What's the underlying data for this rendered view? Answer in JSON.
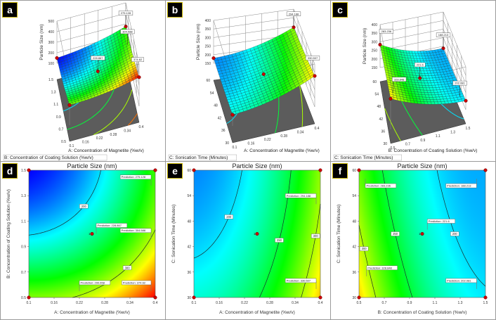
{
  "colors": {
    "low": "#0000ff",
    "mid": "#00ff00",
    "high": "#ff0000",
    "design_point": "#cc0000",
    "floor": "#5c5c5c"
  },
  "center_point_label": "1",
  "chart_data": [
    {
      "panel": "a",
      "type": "surface",
      "zlabel": "Particle Size (nm)",
      "xlabel": "A: Concentration of Magnetite (%w/v)",
      "ylabel": "B: Concentration of Coating Solution (%w/v)",
      "xlim": [
        0.1,
        0.4
      ],
      "ylim": [
        0.5,
        1.5
      ],
      "zlim": [
        100,
        500
      ],
      "xticks": [
        "0.1",
        "0.16",
        "0.22",
        "0.28",
        "0.34",
        "0.4"
      ],
      "yticks": [
        "0.5",
        "0.7",
        "0.9",
        "1.1",
        "1.3",
        "1.5"
      ],
      "zticks": [
        "100",
        "200",
        "300",
        "400",
        "500"
      ],
      "design_points": [
        [
          0.1,
          0.5
        ],
        [
          0.4,
          0.5
        ],
        [
          0.1,
          1.5
        ],
        [
          0.4,
          1.5
        ],
        [
          0.25,
          1.0
        ]
      ],
      "predictions": [
        {
          "label": "275.128",
          "at": [
            0.4,
            1.5
          ]
        },
        {
          "label": "304.588",
          "at": [
            0.39,
            1.2
          ]
        },
        {
          "label": "228.867",
          "at": [
            0.25,
            1.0
          ]
        },
        {
          "label": "374.62",
          "at": [
            0.4,
            0.6
          ]
        }
      ]
    },
    {
      "panel": "b",
      "type": "surface",
      "zlabel": "Particle Size (nm)",
      "xlabel": "A: Concentration of Magnetite (%w/v)",
      "ylabel": "C: Sonication Time (Minutes)",
      "xlim": [
        0.1,
        0.4
      ],
      "ylim": [
        30,
        60
      ],
      "zlim": [
        150,
        400
      ],
      "xticks": [
        "0.1",
        "0.16",
        "0.22",
        "0.28",
        "0.34",
        "0.4"
      ],
      "yticks": [
        "30",
        "36",
        "42",
        "48",
        "54",
        "60"
      ],
      "zticks": [
        "150",
        "200",
        "250",
        "300",
        "350",
        "400"
      ],
      "design_points": [
        [
          0.1,
          30
        ],
        [
          0.4,
          30
        ],
        [
          0.1,
          60
        ],
        [
          0.4,
          60
        ],
        [
          0.25,
          45
        ]
      ],
      "predictions": [
        {
          "label": "294.188",
          "at": [
            0.4,
            60
          ]
        },
        {
          "label": "330.507",
          "at": [
            0.4,
            33
          ]
        }
      ]
    },
    {
      "panel": "c",
      "type": "surface",
      "zlabel": "Particle Size (nm)",
      "xlabel": "B: Concentration of Coating Solution (%w/v)",
      "ylabel": "C: Sonication Time (Minutes)",
      "xlim": [
        0.5,
        1.5
      ],
      "ylim": [
        30,
        60
      ],
      "zlim": [
        150,
        400
      ],
      "xticks": [
        "0.5",
        "0.7",
        "0.9",
        "1.1",
        "1.3",
        "1.5"
      ],
      "yticks": [
        "30",
        "36",
        "42",
        "48",
        "54",
        "60"
      ],
      "zticks": [
        "150",
        "200",
        "250",
        "300",
        "350",
        "400"
      ],
      "design_points": [
        [
          0.5,
          30
        ],
        [
          0.5,
          60
        ],
        [
          1.5,
          60
        ],
        [
          1.5,
          30
        ],
        [
          1.0,
          45
        ]
      ],
      "predictions": [
        {
          "label": "283.236",
          "at": [
            0.5,
            60
          ]
        },
        {
          "label": "188.213",
          "at": [
            1.5,
            60
          ]
        },
        {
          "label": "221.6",
          "at": [
            1.0,
            45
          ]
        },
        {
          "label": "202.081",
          "at": [
            1.45,
            33
          ]
        },
        {
          "label": "328.848",
          "at": [
            0.55,
            34
          ]
        }
      ]
    },
    {
      "panel": "d",
      "type": "heatmap",
      "title": "Particle Size (nm)",
      "xlabel": "A: Concentration of Magnetite (%w/v)",
      "ylabel": "B: Concentration of Coating Solution (%w/v)",
      "xlim": [
        0.1,
        0.4
      ],
      "ylim": [
        0.5,
        1.5
      ],
      "xticks": [
        "0.1",
        "0.16",
        "0.22",
        "0.28",
        "0.34",
        "0.4"
      ],
      "yticks": [
        "0.5",
        "0.7",
        "0.9",
        "1.1",
        "1.3",
        "1.5"
      ],
      "contour_levels": [
        200,
        300
      ],
      "contour_labels": [
        "200",
        "300"
      ],
      "design_points": [
        [
          0.1,
          0.5
        ],
        [
          0.4,
          0.5
        ],
        [
          0.1,
          1.5
        ],
        [
          0.4,
          1.5
        ],
        [
          0.25,
          1.0
        ]
      ],
      "predictions": [
        {
          "label": "Prediction: 275.128",
          "at": [
            0.39,
            1.38
          ]
        },
        {
          "label": "Prediction: 228.867",
          "at": [
            0.26,
            1.0
          ]
        },
        {
          "label": "Prediction: 304.588",
          "at": [
            0.39,
            0.96
          ]
        },
        {
          "label": "Prediction: 290.658",
          "at": [
            0.22,
            0.55
          ]
        },
        {
          "label": "Prediction: 374.62",
          "at": [
            0.39,
            0.55
          ]
        }
      ]
    },
    {
      "panel": "e",
      "type": "heatmap",
      "title": "Particle Size (nm)",
      "xlabel": "A: Concentration of Magnetite (%w/v)",
      "ylabel": "C: Sonication Time (Minutes)",
      "xlim": [
        0.1,
        0.4
      ],
      "ylim": [
        30,
        60
      ],
      "xticks": [
        "0.1",
        "0.16",
        "0.22",
        "0.28",
        "0.34",
        "0.4"
      ],
      "yticks": [
        "30",
        "36",
        "42",
        "48",
        "54",
        "60"
      ],
      "contour_levels": [
        200,
        250,
        300
      ],
      "contour_labels": [
        "200",
        "250",
        "300"
      ],
      "design_points": [
        [
          0.1,
          30
        ],
        [
          0.4,
          30
        ],
        [
          0.1,
          60
        ],
        [
          0.4,
          60
        ],
        [
          0.25,
          45
        ]
      ],
      "predictions": [
        {
          "label": "Prediction: 294.188",
          "at": [
            0.39,
            52
          ]
        },
        {
          "label": "Prediction: 330.507",
          "at": [
            0.39,
            32
          ]
        }
      ]
    },
    {
      "panel": "f",
      "type": "heatmap",
      "title": "Particle Size (nm)",
      "xlabel": "B: Concentration of Coating Solution (%w/v)",
      "ylabel": "C: Sonication Time (Minutes)",
      "xlim": [
        0.5,
        1.5
      ],
      "ylim": [
        30,
        60
      ],
      "xticks": [
        "0.5",
        "0.7",
        "0.9",
        "1.1",
        "1.3",
        "1.5"
      ],
      "yticks": [
        "30",
        "36",
        "42",
        "48",
        "54",
        "60"
      ],
      "contour_levels": [
        300,
        250,
        200
      ],
      "contour_labels": [
        "300",
        "250",
        "200"
      ],
      "design_points": [
        [
          0.5,
          30
        ],
        [
          0.5,
          60
        ],
        [
          1.5,
          60
        ],
        [
          1.5,
          30
        ],
        [
          1.0,
          45
        ]
      ],
      "predictions": [
        {
          "label": "Prediction: 283.236",
          "at": [
            0.55,
            58
          ]
        },
        {
          "label": "Prediction: 188.213",
          "at": [
            1.43,
            58
          ]
        },
        {
          "label": "Prediction: 221.6",
          "at": [
            1.04,
            46
          ]
        },
        {
          "label": "Prediction: 328.848",
          "at": [
            0.56,
            35
          ]
        },
        {
          "label": "Prediction: 202.081",
          "at": [
            1.43,
            32
          ]
        }
      ]
    }
  ]
}
